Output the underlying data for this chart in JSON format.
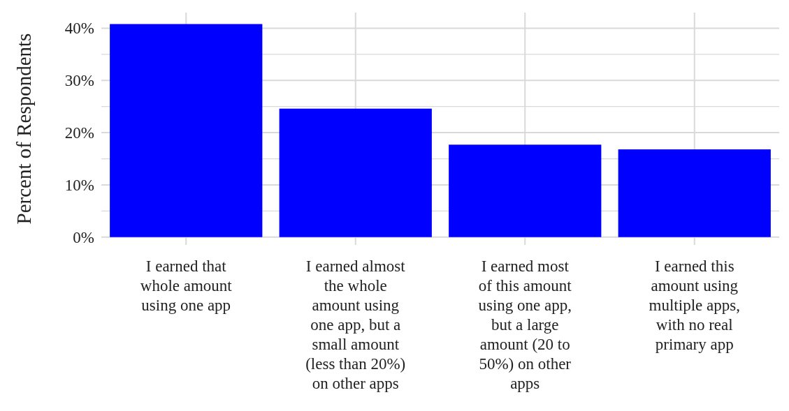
{
  "chart_data": {
    "type": "bar",
    "ylabel": "Percent of Respondents",
    "categories": [
      "I earned that whole amount using one app",
      "I earned almost the whole amount using one app, but a small amount (less than 20%) on other apps",
      "I earned most of this amount using one app, but a large amount (20 to 50%) on other apps",
      "I earned this amount using multiple apps, with no real primary app"
    ],
    "values": [
      40.8,
      24.6,
      17.7,
      16.8
    ],
    "color": "#0000ff",
    "ylim": [
      -1.5,
      43
    ],
    "yticks": [
      {
        "value": 0,
        "label": "0%"
      },
      {
        "value": 5,
        "label": null
      },
      {
        "value": 10,
        "label": "10%"
      },
      {
        "value": 15,
        "label": null
      },
      {
        "value": 20,
        "label": "20%"
      },
      {
        "value": 25,
        "label": null
      },
      {
        "value": 30,
        "label": "30%"
      },
      {
        "value": 35,
        "label": null
      },
      {
        "value": 40,
        "label": "40%"
      }
    ],
    "grid": true
  }
}
